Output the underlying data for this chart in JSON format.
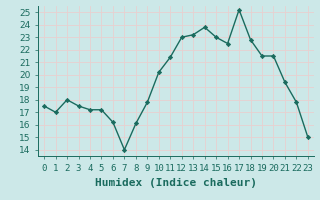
{
  "x": [
    0,
    1,
    2,
    3,
    4,
    5,
    6,
    7,
    8,
    9,
    10,
    11,
    12,
    13,
    14,
    15,
    16,
    17,
    18,
    19,
    20,
    21,
    22,
    23
  ],
  "y": [
    17.5,
    17.0,
    18.0,
    17.5,
    17.2,
    17.2,
    16.2,
    14.0,
    16.1,
    17.8,
    20.2,
    21.4,
    23.0,
    23.2,
    23.8,
    23.0,
    22.5,
    25.2,
    22.8,
    21.5,
    21.5,
    19.4,
    17.8,
    15.0
  ],
  "line_color": "#1a6b5e",
  "marker": "D",
  "marker_size": 2.2,
  "line_width": 1.0,
  "xlabel": "Humidex (Indice chaleur)",
  "ylim": [
    13.5,
    25.5
  ],
  "xlim": [
    -0.5,
    23.5
  ],
  "yticks": [
    14,
    15,
    16,
    17,
    18,
    19,
    20,
    21,
    22,
    23,
    24,
    25
  ],
  "xtick_labels": [
    "0",
    "1",
    "2",
    "3",
    "4",
    "5",
    "6",
    "7",
    "8",
    "9",
    "10",
    "11",
    "12",
    "13",
    "14",
    "15",
    "16",
    "17",
    "18",
    "19",
    "20",
    "21",
    "22",
    "23"
  ],
  "bg_color": "#cce8e8",
  "grid_color": "#f0f0f0",
  "tick_color": "#1a6b5e",
  "tick_fontsize": 6.5,
  "xlabel_fontsize": 8,
  "xlabel_fontweight": "bold"
}
